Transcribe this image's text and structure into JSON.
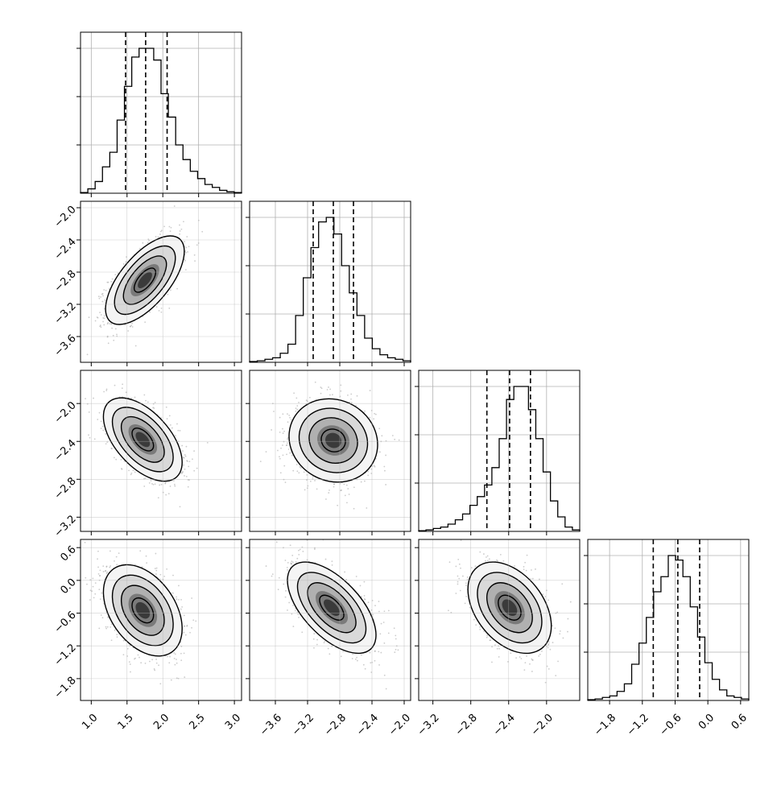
{
  "chart_data": {
    "type": "corner",
    "description_none": "",
    "params": [
      {
        "range": [
          0.85,
          3.1
        ],
        "xticks": [
          1.0,
          1.5,
          2.0,
          2.5,
          3.0
        ],
        "xtick_labels": [
          "1.0",
          "1.5",
          "2.0",
          "2.5",
          "3.0"
        ],
        "yticks": [],
        "ytick_labels": [],
        "quantiles": [
          1.48,
          1.76,
          2.06
        ],
        "hist_counts": [
          0.5,
          3,
          8,
          18,
          28,
          50,
          73,
          93,
          99,
          99,
          91,
          68,
          52,
          33,
          23,
          15,
          10,
          6,
          4,
          2,
          1,
          0.5
        ]
      },
      {
        "range": [
          -3.92,
          -1.92
        ],
        "xticks": [
          -3.6,
          -3.2,
          -2.8,
          -2.4,
          -2.0
        ],
        "xtick_labels": [
          "−3.6",
          "−3.2",
          "−2.8",
          "−2.4",
          "−2.0"
        ],
        "yticks": [
          -2.0,
          -2.4,
          -2.8,
          -3.2,
          -3.6
        ],
        "ytick_labels": [
          "−2.0",
          "−2.4",
          "−2.8",
          "−3.2",
          "−3.6"
        ],
        "quantiles": [
          -3.13,
          -2.88,
          -2.63
        ],
        "hist_counts": [
          0.5,
          1,
          2,
          3,
          6,
          12,
          31,
          56,
          76,
          93,
          96,
          85,
          64,
          46,
          31,
          16,
          9,
          5,
          3,
          2,
          1
        ]
      },
      {
        "range": [
          -3.35,
          -1.65
        ],
        "xticks": [
          -3.2,
          -2.8,
          -2.4,
          -2.0
        ],
        "xtick_labels": [
          "−3.2",
          "−2.8",
          "−2.4",
          "−2.0"
        ],
        "yticks": [
          -2.0,
          -2.4,
          -2.8,
          -3.2
        ],
        "ytick_labels": [
          "−2.0",
          "−2.4",
          "−2.8",
          "−3.2"
        ],
        "quantiles": [
          -2.63,
          -2.39,
          -2.17
        ],
        "hist_counts": [
          0.5,
          1,
          2,
          3,
          5,
          8,
          12,
          18,
          24,
          32,
          44,
          64,
          91,
          100,
          100,
          84,
          64,
          41,
          21,
          10,
          3,
          1
        ]
      },
      {
        "range": [
          -2.2,
          0.75
        ],
        "xticks": [
          -1.8,
          -1.2,
          -0.6,
          0.0,
          0.6
        ],
        "xtick_labels": [
          "−1.8",
          "−1.2",
          "−0.6",
          "0.0",
          "0.6"
        ],
        "yticks": [
          0.6,
          0.0,
          -0.6,
          -1.2,
          -1.8
        ],
        "ytick_labels": [
          "0.6",
          "0.0",
          "−0.6",
          "−1.2",
          "−1.8"
        ],
        "quantiles": [
          -1.0,
          -0.55,
          -0.15
        ],
        "hist_counts": [
          0.5,
          1,
          2,
          3,
          6,
          11,
          24,
          38,
          55,
          72,
          82,
          96,
          93,
          82,
          62,
          42,
          25,
          14,
          7,
          3,
          2,
          1
        ]
      }
    ],
    "pairs": [
      {
        "row": 1,
        "col": 0,
        "mean": [
          1.75,
          -2.9
        ],
        "sd": [
          0.25,
          0.25
        ],
        "corr": 0.65
      },
      {
        "row": 2,
        "col": 0,
        "mean": [
          1.72,
          -2.38
        ],
        "sd": [
          0.25,
          0.2
        ],
        "corr": -0.55
      },
      {
        "row": 2,
        "col": 1,
        "mean": [
          -2.88,
          -2.39
        ],
        "sd": [
          0.25,
          0.2
        ],
        "corr": -0.1
      },
      {
        "row": 3,
        "col": 0,
        "mean": [
          1.72,
          -0.55
        ],
        "sd": [
          0.25,
          0.38
        ],
        "corr": -0.4
      },
      {
        "row": 3,
        "col": 1,
        "mean": [
          -2.9,
          -0.5
        ],
        "sd": [
          0.25,
          0.38
        ],
        "corr": -0.6
      },
      {
        "row": 3,
        "col": 2,
        "mean": [
          -2.39,
          -0.5
        ],
        "sd": [
          0.2,
          0.38
        ],
        "corr": -0.4
      }
    ],
    "contour_levels": [
      0.5,
      1.0,
      1.5,
      2.0
    ],
    "grid": true,
    "colors": {
      "line": "#000000",
      "grid": "#b0b0b0",
      "points": "#9a9a9a"
    },
    "xlabel": "",
    "ylabel": ""
  }
}
